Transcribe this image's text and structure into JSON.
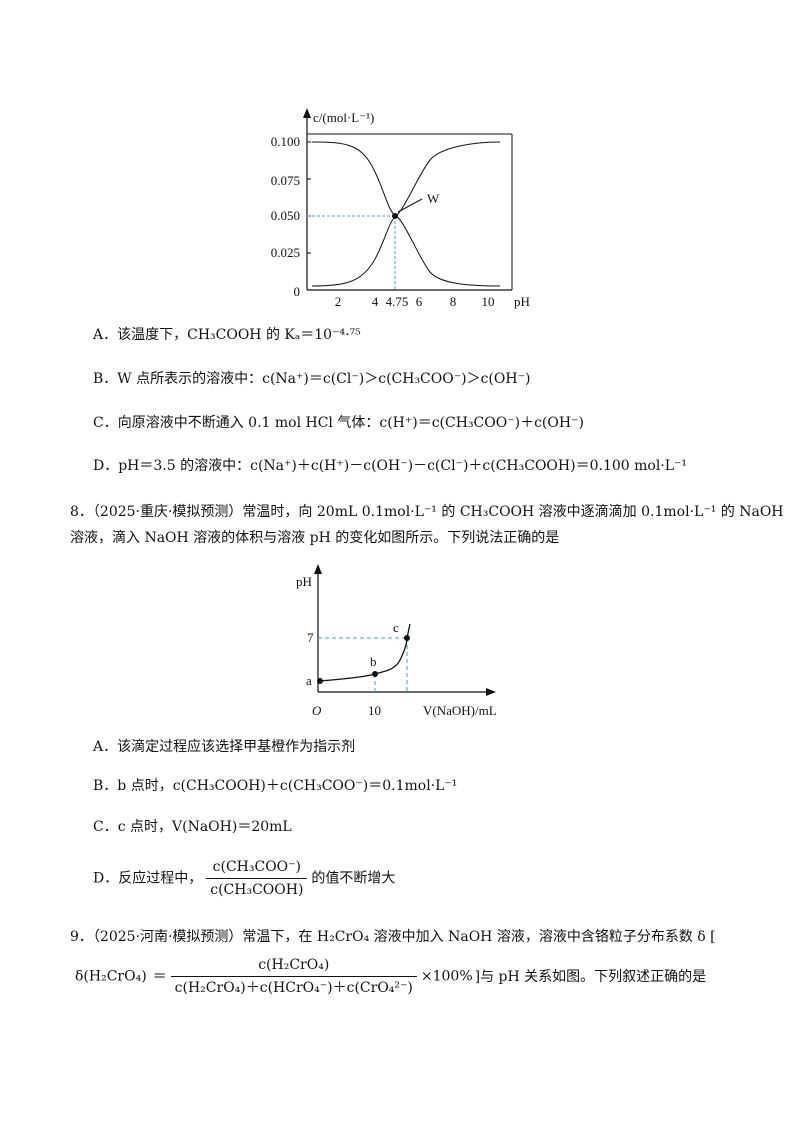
{
  "chart1": {
    "y_axis_label": "c/(mol·L⁻¹)",
    "x_axis_label": "pH",
    "y_ticks": [
      "0.100",
      "0.075",
      "0.050",
      "0.025",
      "0"
    ],
    "x_ticks": [
      "2",
      "4",
      "4.75",
      "6",
      "8",
      "10"
    ],
    "point_label": "W"
  },
  "q7": {
    "A": "A．该温度下，CH₃COOH 的 Kₐ＝10⁻⁴·⁷⁵",
    "B": "B．W 点所表示的溶液中：c(Na⁺)＝c(Cl⁻)＞c(CH₃COO⁻)＞c(OH⁻)",
    "C": "C．向原溶液中不断通入 0.1 mol HCl 气体：c(H⁺)＝c(CH₃COO⁻)＋c(OH⁻)",
    "D": "D．pH＝3.5 的溶液中：c(Na⁺)＋c(H⁺)－c(OH⁻)－c(Cl⁻)＋c(CH₃COOH)＝0.100 mol·L⁻¹"
  },
  "q8": {
    "stem_line1": "8．（2025·重庆·模拟预测）常温时，向 20mL 0.1mol·L⁻¹ 的 CH₃COOH 溶液中逐滴滴加 0.1mol·L⁻¹ 的 NaOH",
    "stem_line2": "溶液，滴入 NaOH 溶液的体积与溶液 pH 的变化如图所示。下列说法正确的是",
    "chart": {
      "y_axis_label": "pH",
      "x_axis_label": "V(NaOH)/mL",
      "origin_label": "O",
      "y_tick": "7",
      "x_tick": "10",
      "point_a": "a",
      "point_b": "b",
      "point_c": "c"
    },
    "A": "A．该滴定过程应该选择甲基橙作为指示剂",
    "B": "B．b 点时，c(CH₃COOH)＋c(CH₃COO⁻)＝0.1mol·L⁻¹",
    "C": "C．c 点时，V(NaOH)＝20mL",
    "D_prefix": "D．反应过程中，",
    "D_num": "c(CH₃COO⁻)",
    "D_den": "c(CH₃COOH)",
    "D_suffix": "的值不断增大"
  },
  "q9": {
    "stem_line1": "9．（2025·河南·模拟预测）常温下，在 H₂CrO₄ 溶液中加入 NaOH 溶液，溶液中含铬粒子分布系数 δ [",
    "delta_left": "δ(H₂CrO₄)",
    "eq": "＝",
    "frac_num": "c(H₂CrO₄)",
    "frac_den": "c(H₂CrO₄)＋c(HCrO₄⁻)＋c(CrO₄²⁻)",
    "times": "×100%",
    "tail": "]与 pH 关系如图。下列叙述正确的是"
  }
}
